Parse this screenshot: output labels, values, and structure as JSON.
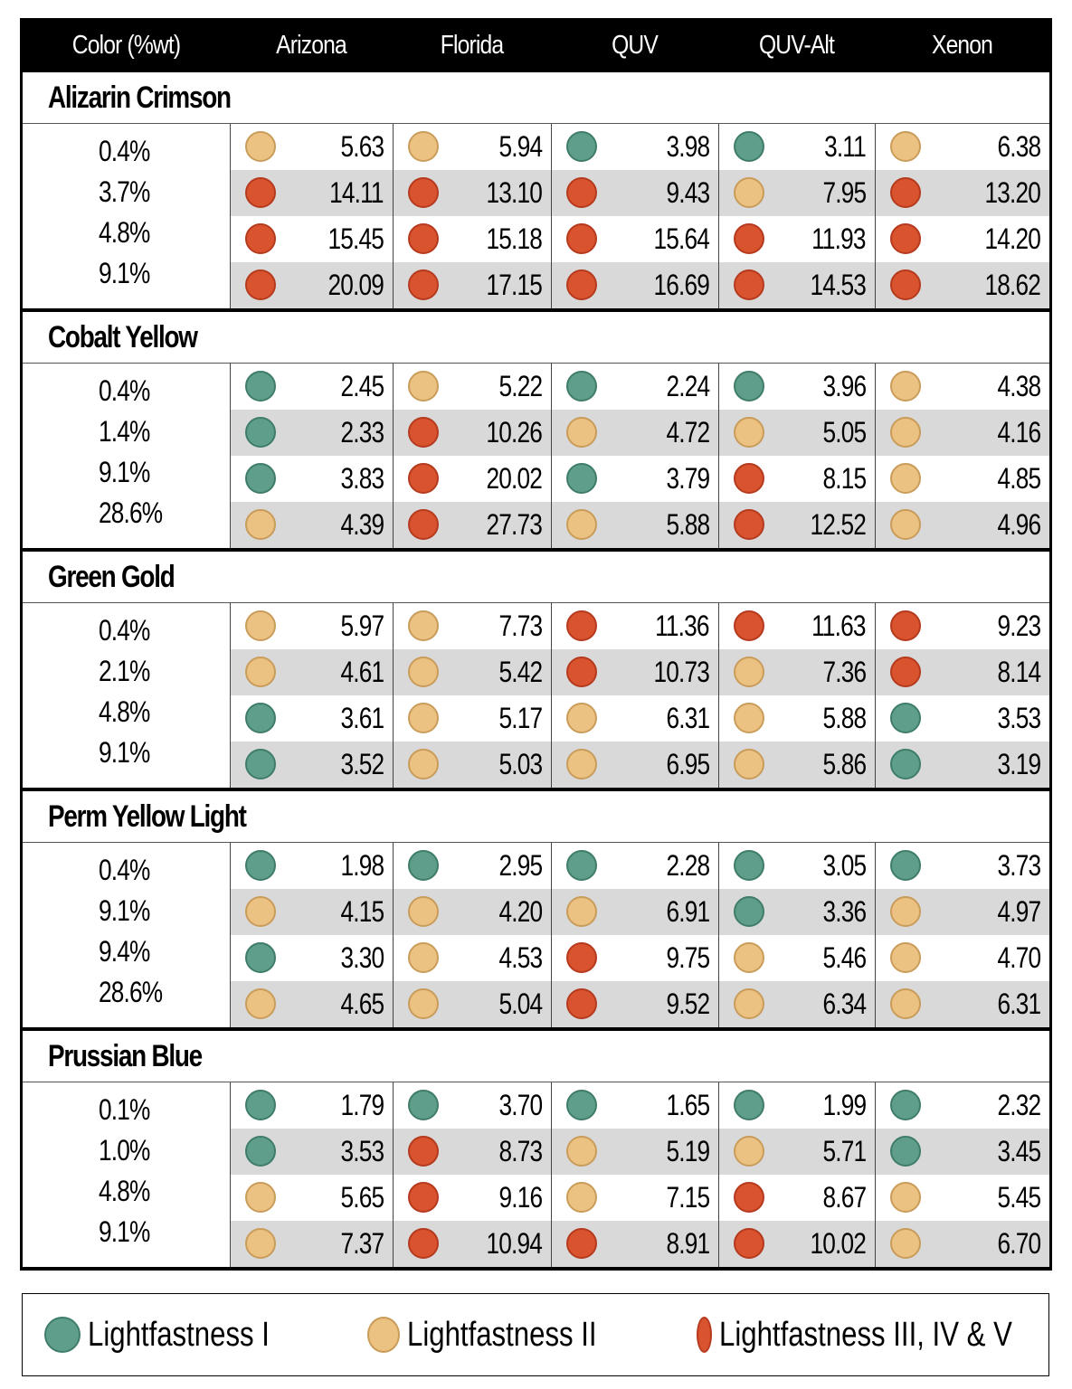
{
  "chart_data": {
    "type": "table",
    "columns": [
      "Color (%wt)",
      "Arizona",
      "Florida",
      "QUV",
      "QUV-Alt",
      "Xenon"
    ],
    "level_colors": {
      "1": "#5e9e8a",
      "2": "#ecc283",
      "3": "#d9532f"
    },
    "level_borders": {
      "1": "#3f7d6a",
      "2": "#c99c5a",
      "3": "#b53a1e"
    },
    "legend": [
      {
        "level": 1,
        "label": "Lightfastness I"
      },
      {
        "level": 2,
        "label": "Lightfastness II"
      },
      {
        "level": 3,
        "label": "Lightfastness III, IV & V"
      }
    ],
    "sections": [
      {
        "name": "Alizarin Crimson",
        "rows": [
          {
            "pct": "0.4%",
            "cells": [
              {
                "level": 2,
                "value": "5.63"
              },
              {
                "level": 2,
                "value": "5.94"
              },
              {
                "level": 1,
                "value": "3.98"
              },
              {
                "level": 1,
                "value": "3.11"
              },
              {
                "level": 2,
                "value": "6.38"
              }
            ]
          },
          {
            "pct": "3.7%",
            "cells": [
              {
                "level": 3,
                "value": "14.11"
              },
              {
                "level": 3,
                "value": "13.10"
              },
              {
                "level": 3,
                "value": "9.43"
              },
              {
                "level": 2,
                "value": "7.95"
              },
              {
                "level": 3,
                "value": "13.20"
              }
            ]
          },
          {
            "pct": "4.8%",
            "cells": [
              {
                "level": 3,
                "value": "15.45"
              },
              {
                "level": 3,
                "value": "15.18"
              },
              {
                "level": 3,
                "value": "15.64"
              },
              {
                "level": 3,
                "value": "11.93"
              },
              {
                "level": 3,
                "value": "14.20"
              }
            ]
          },
          {
            "pct": "9.1%",
            "cells": [
              {
                "level": 3,
                "value": "20.09"
              },
              {
                "level": 3,
                "value": "17.15"
              },
              {
                "level": 3,
                "value": "16.69"
              },
              {
                "level": 3,
                "value": "14.53"
              },
              {
                "level": 3,
                "value": "18.62"
              }
            ]
          }
        ]
      },
      {
        "name": "Cobalt Yellow",
        "rows": [
          {
            "pct": "0.4%",
            "cells": [
              {
                "level": 1,
                "value": "2.45"
              },
              {
                "level": 2,
                "value": "5.22"
              },
              {
                "level": 1,
                "value": "2.24"
              },
              {
                "level": 1,
                "value": "3.96"
              },
              {
                "level": 2,
                "value": "4.38"
              }
            ]
          },
          {
            "pct": "1.4%",
            "cells": [
              {
                "level": 1,
                "value": "2.33"
              },
              {
                "level": 3,
                "value": "10.26"
              },
              {
                "level": 2,
                "value": "4.72"
              },
              {
                "level": 2,
                "value": "5.05"
              },
              {
                "level": 2,
                "value": "4.16"
              }
            ]
          },
          {
            "pct": "9.1%",
            "cells": [
              {
                "level": 1,
                "value": "3.83"
              },
              {
                "level": 3,
                "value": "20.02"
              },
              {
                "level": 1,
                "value": "3.79"
              },
              {
                "level": 3,
                "value": "8.15"
              },
              {
                "level": 2,
                "value": "4.85"
              }
            ]
          },
          {
            "pct": "28.6%",
            "cells": [
              {
                "level": 2,
                "value": "4.39"
              },
              {
                "level": 3,
                "value": "27.73"
              },
              {
                "level": 2,
                "value": "5.88"
              },
              {
                "level": 3,
                "value": "12.52"
              },
              {
                "level": 2,
                "value": "4.96"
              }
            ]
          }
        ]
      },
      {
        "name": "Green Gold",
        "rows": [
          {
            "pct": "0.4%",
            "cells": [
              {
                "level": 2,
                "value": "5.97"
              },
              {
                "level": 2,
                "value": "7.73"
              },
              {
                "level": 3,
                "value": "11.36"
              },
              {
                "level": 3,
                "value": "11.63"
              },
              {
                "level": 3,
                "value": "9.23"
              }
            ]
          },
          {
            "pct": "2.1%",
            "cells": [
              {
                "level": 2,
                "value": "4.61"
              },
              {
                "level": 2,
                "value": "5.42"
              },
              {
                "level": 3,
                "value": "10.73"
              },
              {
                "level": 2,
                "value": "7.36"
              },
              {
                "level": 3,
                "value": "8.14"
              }
            ]
          },
          {
            "pct": "4.8%",
            "cells": [
              {
                "level": 1,
                "value": "3.61"
              },
              {
                "level": 2,
                "value": "5.17"
              },
              {
                "level": 2,
                "value": "6.31"
              },
              {
                "level": 2,
                "value": "5.88"
              },
              {
                "level": 1,
                "value": "3.53"
              }
            ]
          },
          {
            "pct": "9.1%",
            "cells": [
              {
                "level": 1,
                "value": "3.52"
              },
              {
                "level": 2,
                "value": "5.03"
              },
              {
                "level": 2,
                "value": "6.95"
              },
              {
                "level": 2,
                "value": "5.86"
              },
              {
                "level": 1,
                "value": "3.19"
              }
            ]
          }
        ]
      },
      {
        "name": "Perm Yellow Light",
        "rows": [
          {
            "pct": "0.4%",
            "cells": [
              {
                "level": 1,
                "value": "1.98"
              },
              {
                "level": 1,
                "value": "2.95"
              },
              {
                "level": 1,
                "value": "2.28"
              },
              {
                "level": 1,
                "value": "3.05"
              },
              {
                "level": 1,
                "value": "3.73"
              }
            ]
          },
          {
            "pct": "9.1%",
            "cells": [
              {
                "level": 2,
                "value": "4.15"
              },
              {
                "level": 2,
                "value": "4.20"
              },
              {
                "level": 2,
                "value": "6.91"
              },
              {
                "level": 1,
                "value": "3.36"
              },
              {
                "level": 2,
                "value": "4.97"
              }
            ]
          },
          {
            "pct": "9.4%",
            "cells": [
              {
                "level": 1,
                "value": "3.30"
              },
              {
                "level": 2,
                "value": "4.53"
              },
              {
                "level": 3,
                "value": "9.75"
              },
              {
                "level": 2,
                "value": "5.46"
              },
              {
                "level": 2,
                "value": "4.70"
              }
            ]
          },
          {
            "pct": "28.6%",
            "cells": [
              {
                "level": 2,
                "value": "4.65"
              },
              {
                "level": 2,
                "value": "5.04"
              },
              {
                "level": 3,
                "value": "9.52"
              },
              {
                "level": 2,
                "value": "6.34"
              },
              {
                "level": 2,
                "value": "6.31"
              }
            ]
          }
        ]
      },
      {
        "name": "Prussian Blue",
        "rows": [
          {
            "pct": "0.1%",
            "cells": [
              {
                "level": 1,
                "value": "1.79"
              },
              {
                "level": 1,
                "value": "3.70"
              },
              {
                "level": 1,
                "value": "1.65"
              },
              {
                "level": 1,
                "value": "1.99"
              },
              {
                "level": 1,
                "value": "2.32"
              }
            ]
          },
          {
            "pct": "1.0%",
            "cells": [
              {
                "level": 1,
                "value": "3.53"
              },
              {
                "level": 3,
                "value": "8.73"
              },
              {
                "level": 2,
                "value": "5.19"
              },
              {
                "level": 2,
                "value": "5.71"
              },
              {
                "level": 1,
                "value": "3.45"
              }
            ]
          },
          {
            "pct": "4.8%",
            "cells": [
              {
                "level": 2,
                "value": "5.65"
              },
              {
                "level": 3,
                "value": "9.16"
              },
              {
                "level": 2,
                "value": "7.15"
              },
              {
                "level": 3,
                "value": "8.67"
              },
              {
                "level": 2,
                "value": "5.45"
              }
            ]
          },
          {
            "pct": "9.1%",
            "cells": [
              {
                "level": 2,
                "value": "7.37"
              },
              {
                "level": 3,
                "value": "10.94"
              },
              {
                "level": 3,
                "value": "8.91"
              },
              {
                "level": 3,
                "value": "10.02"
              },
              {
                "level": 2,
                "value": "6.70"
              }
            ]
          }
        ]
      }
    ]
  }
}
